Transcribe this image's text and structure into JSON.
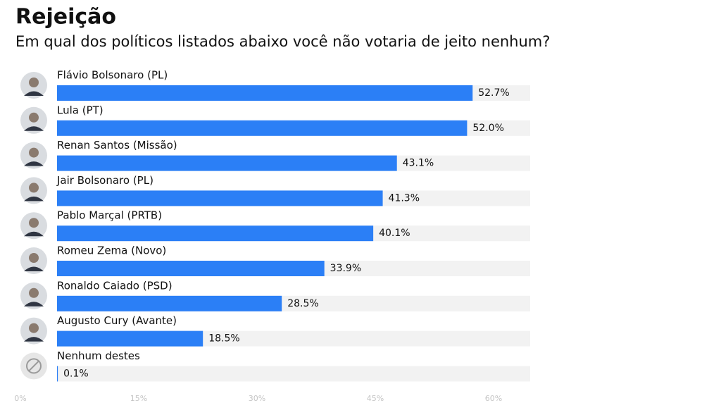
{
  "chart_data": {
    "type": "bar",
    "orientation": "horizontal",
    "title": "Rejeição",
    "subtitle": "Em qual dos políticos listados abaixo você não votaria de jeito nenhum?",
    "categories": [
      "Flávio Bolsonaro (PL)",
      "Lula (PT)",
      "Renan Santos (Missão)",
      "Jair Bolsonaro (PL)",
      "Pablo Marçal (PRTB)",
      "Romeu Zema (Novo)",
      "Ronaldo Caiado (PSD)",
      "Augusto Cury (Avante)",
      "Nenhum destes"
    ],
    "values": [
      52.7,
      52.0,
      43.1,
      41.3,
      40.1,
      33.9,
      28.5,
      18.5,
      0.1
    ],
    "value_labels": [
      "52.7%",
      "52.0%",
      "43.1%",
      "41.3%",
      "40.1%",
      "33.9%",
      "28.5%",
      "18.5%",
      "0.1%"
    ],
    "color": "#2b7ff6",
    "xlim": [
      0,
      60
    ],
    "xticks": [
      {
        "value": 0,
        "label": "0%"
      },
      {
        "value": 15,
        "label": "15%"
      },
      {
        "value": 30,
        "label": "30%"
      },
      {
        "value": 45,
        "label": "45%"
      },
      {
        "value": 60,
        "label": "60%"
      }
    ]
  }
}
